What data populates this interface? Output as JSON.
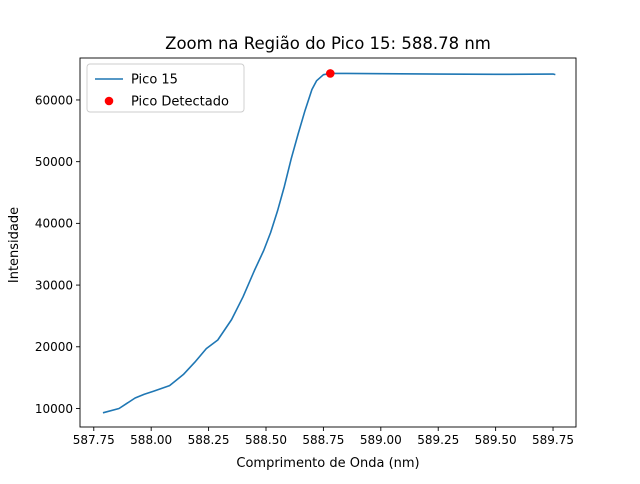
{
  "chart_data": {
    "type": "line",
    "title": "Zoom na Região do Pico 15: 588.78 nm",
    "xlabel": "Comprimento de Onda (nm)",
    "ylabel": "Intensidade",
    "xlim": [
      587.69,
      589.85
    ],
    "ylim": [
      7000,
      66800
    ],
    "xticks": [
      587.75,
      588.0,
      588.25,
      588.5,
      588.75,
      589.0,
      589.25,
      589.5,
      589.75
    ],
    "xtick_labels": [
      "587.75",
      "588.00",
      "588.25",
      "588.50",
      "588.75",
      "589.00",
      "589.25",
      "589.50",
      "589.75"
    ],
    "yticks": [
      10000,
      20000,
      30000,
      40000,
      50000,
      60000
    ],
    "ytick_labels": [
      "10000",
      "20000",
      "30000",
      "40000",
      "50000",
      "60000"
    ],
    "grid": false,
    "legend_position": "upper-left",
    "series": [
      {
        "name": "Pico 15",
        "color": "#1f77b4",
        "marker": "line",
        "x": [
          587.79,
          587.86,
          587.93,
          587.97,
          588.01,
          588.08,
          588.14,
          588.19,
          588.24,
          588.29,
          588.35,
          588.4,
          588.45,
          588.49,
          588.52,
          588.55,
          588.58,
          588.61,
          588.64,
          588.67,
          588.7,
          588.72,
          588.75,
          588.78,
          588.85,
          589.0,
          589.25,
          589.5,
          589.75,
          589.76
        ],
        "y": [
          9300,
          10000,
          11700,
          12300,
          12800,
          13700,
          15500,
          17500,
          19700,
          21100,
          24400,
          28100,
          32400,
          35600,
          38500,
          42000,
          46000,
          50500,
          54500,
          58300,
          61700,
          63100,
          64100,
          64300,
          64300,
          64250,
          64200,
          64150,
          64200,
          64100
        ]
      },
      {
        "name": "Pico Detectado",
        "color": "#ff0000",
        "marker": "dot",
        "x": [
          588.78
        ],
        "y": [
          64300
        ]
      }
    ]
  }
}
